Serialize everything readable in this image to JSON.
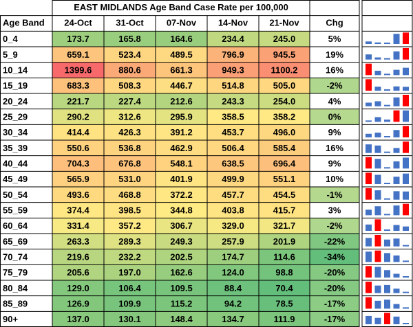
{
  "title": "EAST MIDLANDS Age Band Case Rate per 100,000",
  "header": [
    "Age Band",
    "24-Oct",
    "31-Oct",
    "07-Nov",
    "14-Nov",
    "21-Nov",
    "Chg"
  ],
  "rows": [
    [
      "0_4",
      "173.7",
      "165.8",
      "164.6",
      "234.4",
      "245.0",
      "5%"
    ],
    [
      "5_9",
      "659.1",
      "523.4",
      "489.5",
      "796.9",
      "945.5",
      "19%"
    ],
    [
      "10_14",
      "1399.6",
      "880.6",
      "661.3",
      "949.3",
      "1100.2",
      "16%"
    ],
    [
      "15_19",
      "683.3",
      "508.3",
      "446.7",
      "514.8",
      "505.0",
      "-2%"
    ],
    [
      "20_24",
      "221.7",
      "227.4",
      "212.6",
      "243.3",
      "254.0",
      "4%"
    ],
    [
      "25_29",
      "290.2",
      "312.6",
      "295.9",
      "358.5",
      "358.2",
      "0%"
    ],
    [
      "30_34",
      "414.4",
      "426.3",
      "391.2",
      "453.7",
      "496.0",
      "9%"
    ],
    [
      "35_39",
      "550.6",
      "536.8",
      "462.9",
      "506.4",
      "585.4",
      "16%"
    ],
    [
      "40_44",
      "704.3",
      "676.8",
      "548.1",
      "638.5",
      "696.4",
      "9%"
    ],
    [
      "45_49",
      "565.9",
      "531.0",
      "401.9",
      "499.9",
      "551.1",
      "10%"
    ],
    [
      "50_54",
      "493.6",
      "468.8",
      "372.2",
      "457.7",
      "454.5",
      "-1%"
    ],
    [
      "55_59",
      "374.4",
      "398.5",
      "344.8",
      "403.8",
      "415.7",
      "3%"
    ],
    [
      "60_64",
      "331.4",
      "357.2",
      "306.7",
      "329.0",
      "321.7",
      "-2%"
    ],
    [
      "65_69",
      "263.3",
      "289.3",
      "249.3",
      "257.9",
      "201.9",
      "-22%"
    ],
    [
      "70_74",
      "219.6",
      "232.2",
      "202.5",
      "174.7",
      "114.6",
      "-34%"
    ],
    [
      "75_79",
      "205.6",
      "197.0",
      "162.6",
      "124.0",
      "98.8",
      "-20%"
    ],
    [
      "80_84",
      "129.0",
      "106.4",
      "109.5",
      "88.4",
      "70.4",
      "-20%"
    ],
    [
      "85_89",
      "126.9",
      "109.9",
      "115.2",
      "94.2",
      "78.5",
      "-17%"
    ],
    [
      "90+",
      "137.0",
      "130.1",
      "148.4",
      "134.7",
      "111.9",
      "-17%"
    ]
  ]
}
